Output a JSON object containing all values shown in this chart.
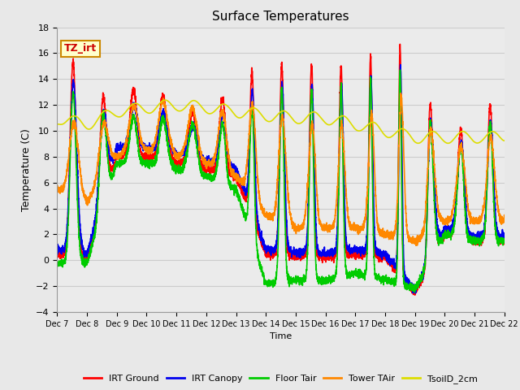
{
  "title": "Surface Temperatures",
  "ylabel": "Temperature (C)",
  "xlabel": "Time",
  "annotation_text": "TZ_irt",
  "annotation_bbox_facecolor": "#FFFFCC",
  "annotation_bbox_edgecolor": "#CC8800",
  "ylim": [
    -4,
    18
  ],
  "yticks": [
    -4,
    -2,
    0,
    2,
    4,
    6,
    8,
    10,
    12,
    14,
    16,
    18
  ],
  "x_tick_labels": [
    "Dec 7",
    "Dec 8",
    "Dec 9",
    "Dec 10",
    "Dec 11",
    "Dec 12",
    "Dec 13",
    "Dec 14",
    "Dec 15",
    "Dec 16",
    "Dec 17",
    "Dec 18",
    "Dec 19",
    "Dec 20",
    "Dec 21",
    "Dec 22"
  ],
  "series": {
    "IRT Ground": {
      "color": "#FF0000",
      "lw": 1.2
    },
    "IRT Canopy": {
      "color": "#0000EE",
      "lw": 1.2
    },
    "Floor Tair": {
      "color": "#00CC00",
      "lw": 1.2
    },
    "Tower TAir": {
      "color": "#FF8800",
      "lw": 1.2
    },
    "TsoilD_2cm": {
      "color": "#DDDD00",
      "lw": 1.2
    }
  },
  "grid_color": "#CCCCCC",
  "bg_color": "#E8E8E8",
  "plot_bg_color": "#EBEBEB"
}
